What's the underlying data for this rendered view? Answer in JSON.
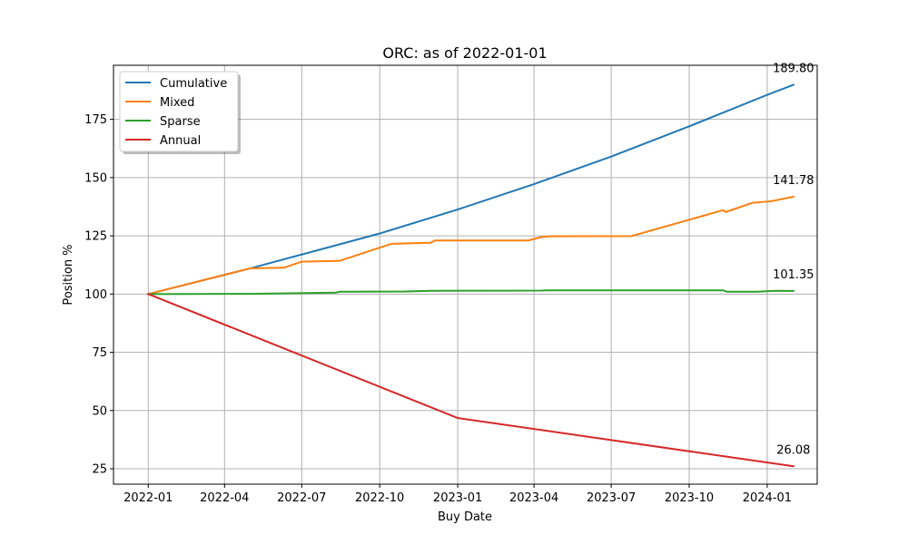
{
  "chart_data": {
    "type": "line",
    "title": "ORC: as of 2022-01-01",
    "xlabel": "Buy Date",
    "ylabel": "Position %",
    "grid": true,
    "legend_position": "upper-left",
    "xlim": [
      "2021-11-21",
      "2024-02-29"
    ],
    "ylim": [
      18.4,
      198.2
    ],
    "x_ticks": [
      "2022-01-01",
      "2022-04-01",
      "2022-07-01",
      "2022-10-01",
      "2023-01-01",
      "2023-04-01",
      "2023-07-01",
      "2023-10-01",
      "2024-01-01"
    ],
    "x_tick_labels": [
      "2022-01",
      "2022-04",
      "2022-07",
      "2022-10",
      "2023-01",
      "2023-04",
      "2023-07",
      "2023-10",
      "2024-01"
    ],
    "y_ticks": [
      25,
      50,
      75,
      100,
      125,
      150,
      175
    ],
    "y_tick_labels": [
      "25",
      "50",
      "75",
      "100",
      "125",
      "150",
      "175"
    ],
    "series": [
      {
        "name": "Cumulative",
        "color": "#1f77b4",
        "end_label": "189.80",
        "points": [
          [
            "2022-01-01",
            100.0
          ],
          [
            "2022-05-01",
            111.0
          ],
          [
            "2022-10-01",
            126.0
          ],
          [
            "2023-01-01",
            136.3
          ],
          [
            "2023-04-01",
            147.2
          ],
          [
            "2023-07-01",
            159.0
          ],
          [
            "2023-10-01",
            172.0
          ],
          [
            "2024-01-01",
            185.5
          ],
          [
            "2024-02-01",
            189.8
          ]
        ]
      },
      {
        "name": "Mixed",
        "color": "#ff7f0e",
        "end_label": "141.78",
        "points": [
          [
            "2022-01-01",
            100.0
          ],
          [
            "2022-05-01",
            111.0
          ],
          [
            "2022-06-10",
            111.3
          ],
          [
            "2022-07-01",
            113.9
          ],
          [
            "2022-08-15",
            114.3
          ],
          [
            "2022-10-15",
            121.6
          ],
          [
            "2022-11-30",
            122.0
          ],
          [
            "2022-12-05",
            123.0
          ],
          [
            "2023-03-25",
            123.0
          ],
          [
            "2023-04-10",
            124.5
          ],
          [
            "2023-04-20",
            124.8
          ],
          [
            "2023-07-25",
            124.9
          ],
          [
            "2023-11-10",
            136.0
          ],
          [
            "2023-11-13",
            135.2
          ],
          [
            "2023-12-15",
            139.2
          ],
          [
            "2024-01-05",
            139.8
          ],
          [
            "2024-02-01",
            141.78
          ]
        ]
      },
      {
        "name": "Sparse",
        "color": "#2ca02c",
        "end_label": "101.35",
        "points": [
          [
            "2022-01-01",
            100.0
          ],
          [
            "2022-05-01",
            100.1
          ],
          [
            "2022-08-10",
            100.6
          ],
          [
            "2022-08-15",
            101.0
          ],
          [
            "2022-10-31",
            101.1
          ],
          [
            "2022-12-01",
            101.4
          ],
          [
            "2023-04-10",
            101.5
          ],
          [
            "2023-04-15",
            101.6
          ],
          [
            "2023-11-10",
            101.6
          ],
          [
            "2023-11-14",
            101.0
          ],
          [
            "2023-12-20",
            101.0
          ],
          [
            "2024-01-10",
            101.4
          ],
          [
            "2024-02-01",
            101.35
          ]
        ]
      },
      {
        "name": "Annual",
        "color": "#d62728",
        "end_label": "26.08",
        "points": [
          [
            "2022-01-01",
            100.0
          ],
          [
            "2023-01-01",
            46.8
          ],
          [
            "2024-02-01",
            26.08
          ]
        ]
      }
    ]
  }
}
